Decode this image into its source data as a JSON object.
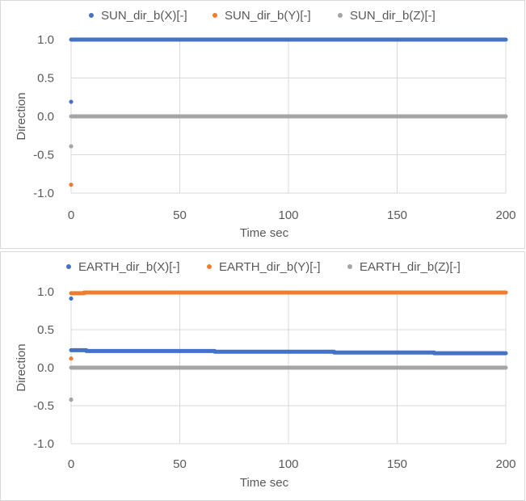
{
  "chart_data": [
    {
      "type": "scatter",
      "xlabel": "Time sec",
      "ylabel": "Direction",
      "xlim": [
        0,
        200
      ],
      "ylim": [
        -1.0,
        1.0
      ],
      "xticks": [
        0,
        50,
        100,
        150,
        200
      ],
      "yticks": [
        1.0,
        0.5,
        0.0,
        -0.5,
        -1.0
      ],
      "ytick_labels": [
        "1.0",
        "0.5",
        "0.0",
        "-0.5",
        "-1.0"
      ],
      "xtick_labels": [
        "0",
        "50",
        "100",
        "150",
        "200"
      ],
      "grid": true,
      "legend_position": "top",
      "series": [
        {
          "name": "SUN_dir_b(X)[-]",
          "color": "#4472c4",
          "segments": [
            [
              0,
              200,
              1.0,
              1.0
            ]
          ],
          "points": [
            [
              0,
              0.19
            ]
          ]
        },
        {
          "name": "SUN_dir_b(Y)[-]",
          "color": "#ed7d31",
          "segments": [],
          "points": [
            [
              0,
              -0.89
            ]
          ]
        },
        {
          "name": "SUN_dir_b(Z)[-]",
          "color": "#a5a5a5",
          "segments": [
            [
              0,
              200,
              0.0,
              0.0
            ]
          ],
          "points": [
            [
              0,
              -0.39
            ]
          ]
        }
      ]
    },
    {
      "type": "scatter",
      "xlabel": "Time sec",
      "ylabel": "Direction",
      "xlim": [
        0,
        200
      ],
      "ylim": [
        -1.0,
        1.0
      ],
      "xticks": [
        0,
        50,
        100,
        150,
        200
      ],
      "yticks": [
        1.0,
        0.5,
        0.0,
        -0.5,
        -1.0
      ],
      "ytick_labels": [
        "1.0",
        "0.5",
        "0.0",
        "-0.5",
        "-1.0"
      ],
      "xtick_labels": [
        "0",
        "50",
        "100",
        "150",
        "200"
      ],
      "grid": true,
      "legend_position": "top",
      "series": [
        {
          "name": "EARTH_dir_b(X)[-]",
          "color": "#4472c4",
          "segments": [
            [
              0,
              7,
              0.23,
              0.23
            ],
            [
              7,
              66,
              0.22,
              0.22
            ],
            [
              66,
              121,
              0.21,
              0.21
            ],
            [
              121,
              167,
              0.2,
              0.2
            ],
            [
              167,
              200,
              0.19,
              0.19
            ]
          ],
          "points": [
            [
              0,
              0.91
            ]
          ]
        },
        {
          "name": "EARTH_dir_b(Y)[-]",
          "color": "#ed7d31",
          "segments": [
            [
              0,
              6,
              0.98,
              0.98
            ],
            [
              6,
              200,
              0.99,
              0.99
            ]
          ],
          "points": [
            [
              0,
              0.12
            ]
          ]
        },
        {
          "name": "EARTH_dir_b(Z)[-]",
          "color": "#a5a5a5",
          "segments": [
            [
              0,
              200,
              0.0,
              0.0
            ]
          ],
          "points": [
            [
              0,
              -0.42
            ]
          ]
        }
      ]
    }
  ]
}
